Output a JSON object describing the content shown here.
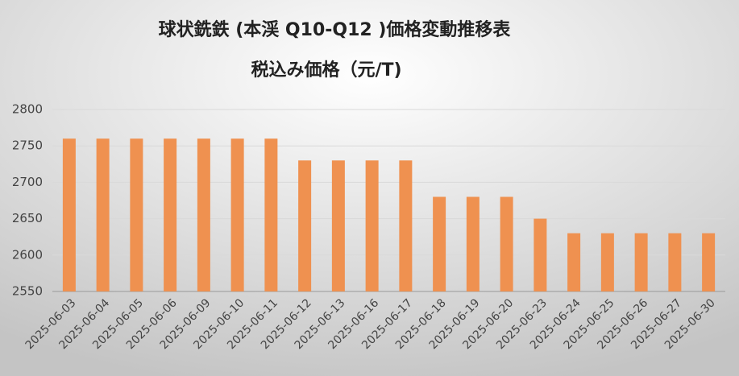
{
  "chart_data": {
    "type": "bar",
    "title": "球状銑鉄 (本渓 Q10-Q12 )価格変動推移表",
    "subtitle": "税込み価格（元/T)",
    "categories": [
      "2025-06-03",
      "2025-06-04",
      "2025-06-05",
      "2025-06-06",
      "2025-06-09",
      "2025-06-10",
      "2025-06-11",
      "2025-06-12",
      "2025-06-13",
      "2025-06-16",
      "2025-06-17",
      "2025-06-18",
      "2025-06-19",
      "2025-06-20",
      "2025-06-23",
      "2025-06-24",
      "2025-06-25",
      "2025-06-26",
      "2025-06-27",
      "2025-06-30"
    ],
    "values": [
      2760,
      2760,
      2760,
      2760,
      2760,
      2760,
      2760,
      2730,
      2730,
      2730,
      2730,
      2680,
      2680,
      2680,
      2650,
      2630,
      2630,
      2630,
      2630,
      2630
    ],
    "color": "#ef9150",
    "ylim": [
      2550,
      2800
    ],
    "yticks": [
      2550,
      2600,
      2650,
      2700,
      2750,
      2800
    ],
    "grid": true
  }
}
